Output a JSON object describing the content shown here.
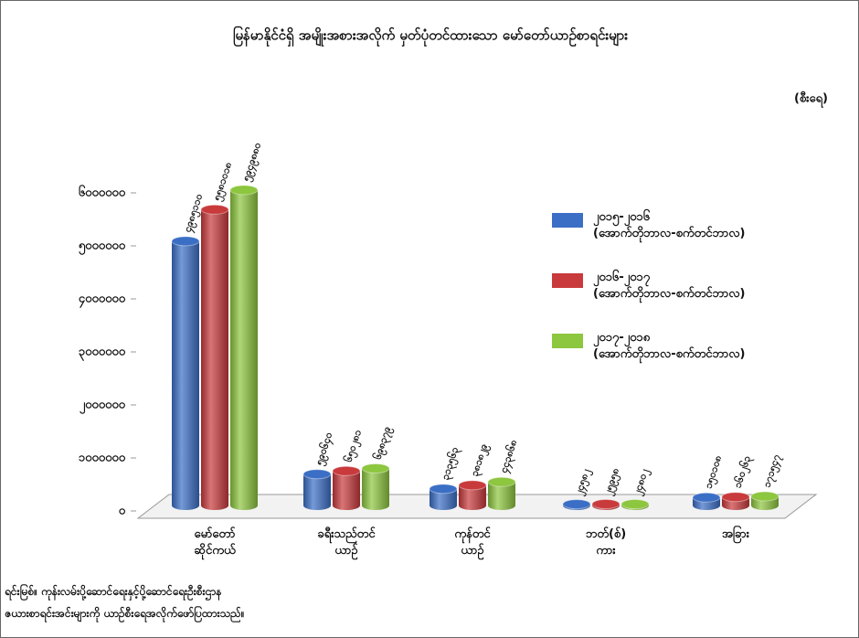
{
  "chart_data": {
    "type": "bar",
    "title": "မြန်မာနိုင်ငံရှိ အမျိုးအစားအလိုက် မှတ်ပုံတင်ထားသော မော်တော်ယာဉ်စာရင်းများ",
    "unit_label": "(စီးရေ)",
    "categories": [
      "မော်တော်\nဆိုင်ကယ်",
      "ခရီးသည်တင်\nယာဉ်",
      "ကုန်တင်\nယာဉ်",
      "ဘတ်(စ်)\nကား",
      "အခြား"
    ],
    "series": [
      {
        "name": "၂၀၁၅-၂၀၁၆\n(အောက်တိုဘာလ-စက်တင်ဘာလ)",
        "color": "#3b6fc6",
        "values": [
          4985110,
          590640,
          313563,
          24582,
          150108
        ],
        "value_labels": [
          "၄၉၈၅၁၁၀",
          "၅၉၀၆၄၀",
          "၃၁၃၅၆၃",
          "၂၄၅၈၂",
          "၁၅၀၁၀၈"
        ]
      },
      {
        "name": "၂၀၁၆-၂၀၁၇\n(အောက်တိုဘာလ-စက်တင်ဘာလ)",
        "color": "#c93a3c",
        "values": [
          5581018,
          650281,
          381829,
          25958,
          160263
        ],
        "value_labels": [
          "၅၅၈၁၀၁၈",
          "၆၅၀၂၈၁",
          "၃၈၁၈၂၉",
          "၂၅၉၅၈",
          "၁၆၀၂၆၃"
        ]
      },
      {
        "name": "၂၀၁၇-၂၀၁၈\n(အောက်တိုဘာလ-စက်တင်ဘာလ)",
        "color": "#8dc63f",
        "values": [
          5949880,
          698379,
          443868,
          24802,
          171547
        ],
        "value_labels": [
          "၅၉၄၉၈၈၀",
          "၆၉၈၃၇၉",
          "၄၄၃၈၆၈",
          "၂၄၈၀၂",
          "၁၇၁၅၄၇"
        ]
      }
    ],
    "ylim": [
      0,
      6000000
    ],
    "yticks": [
      {
        "value": 0,
        "label": "၀"
      },
      {
        "value": 1000000,
        "label": "၁၀၀၀၀၀၀"
      },
      {
        "value": 2000000,
        "label": "၂၀၀၀၀၀၀"
      },
      {
        "value": 3000000,
        "label": "၃၀၀၀၀၀၀"
      },
      {
        "value": 4000000,
        "label": "၄၀၀၀၀၀၀"
      },
      {
        "value": 5000000,
        "label": "၅၀၀၀၀၀၀"
      },
      {
        "value": 6000000,
        "label": "၆၀၀၀၀၀၀"
      }
    ],
    "grid": false,
    "legend_position": "right",
    "source": [
      "ရင်းမြစ်။ ကုန်းလမ်းပို့ဆောင်ရေးနှင့်ပို့ဆောင်ရေးဦးစီးဌာန",
      "ဇယားစာရင်းအင်းများကို ယာဉ်စီးရေအလိုက်ဖော်ပြထားသည်။"
    ]
  }
}
